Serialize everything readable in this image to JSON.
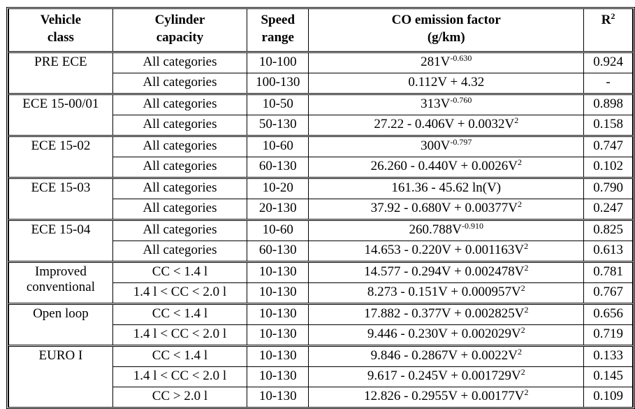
{
  "headers": {
    "vehicle_class": [
      "Vehicle",
      "class"
    ],
    "cylinder_capacity": [
      "Cylinder",
      "capacity"
    ],
    "speed_range": [
      "Speed",
      "range"
    ],
    "emission_factor": [
      "CO emission factor",
      "(g/km)"
    ],
    "r2_base": "R",
    "r2_exp": "2"
  },
  "groups": [
    {
      "class": [
        "PRE ECE"
      ],
      "rows": [
        {
          "cap": "All categories",
          "speed": "10-100",
          "f": [
            "281V",
            "-0.630",
            ""
          ],
          "r2": "0.924"
        },
        {
          "cap": "All categories",
          "speed": "100-130",
          "f": [
            "0.112V + 4.32",
            "",
            ""
          ],
          "r2": "-"
        }
      ]
    },
    {
      "class": [
        "ECE 15-00/01"
      ],
      "rows": [
        {
          "cap": "All categories",
          "speed": "10-50",
          "f": [
            "313V",
            "-0.760",
            ""
          ],
          "r2": "0.898"
        },
        {
          "cap": "All categories",
          "speed": "50-130",
          "f": [
            "27.22 - 0.406V + 0.0032V",
            "2",
            ""
          ],
          "r2": "0.158"
        }
      ]
    },
    {
      "class": [
        "ECE 15-02"
      ],
      "rows": [
        {
          "cap": "All categories",
          "speed": "10-60",
          "f": [
            "300V",
            "-0.797",
            ""
          ],
          "r2": "0.747"
        },
        {
          "cap": "All categories",
          "speed": "60-130",
          "f": [
            "26.260 - 0.440V + 0.0026V",
            "2",
            ""
          ],
          "r2": "0.102"
        }
      ]
    },
    {
      "class": [
        "ECE 15-03"
      ],
      "rows": [
        {
          "cap": "All categories",
          "speed": "10-20",
          "f": [
            "161.36 - 45.62 ln(V)",
            "",
            ""
          ],
          "r2": "0.790"
        },
        {
          "cap": "All categories",
          "speed": "20-130",
          "f": [
            "37.92 - 0.680V + 0.00377V",
            "2",
            ""
          ],
          "r2": "0.247"
        }
      ]
    },
    {
      "class": [
        "ECE 15-04"
      ],
      "rows": [
        {
          "cap": "All categories",
          "speed": "10-60",
          "f": [
            "260.788V",
            "-0.910",
            ""
          ],
          "r2": "0.825"
        },
        {
          "cap": "All categories",
          "speed": "60-130",
          "f": [
            "14.653 - 0.220V + 0.001163V",
            "2",
            ""
          ],
          "r2": "0.613"
        }
      ]
    },
    {
      "class": [
        "Improved",
        "conventional"
      ],
      "rows": [
        {
          "cap": "CC < 1.4 l",
          "speed": "10-130",
          "f": [
            "14.577 - 0.294V + 0.002478V",
            "2",
            ""
          ],
          "r2": "0.781"
        },
        {
          "cap": "1.4 l < CC < 2.0 l",
          "speed": "10-130",
          "f": [
            "8.273 - 0.151V + 0.000957V",
            "2",
            ""
          ],
          "r2": "0.767"
        }
      ]
    },
    {
      "class": [
        "Open loop"
      ],
      "rows": [
        {
          "cap": "CC < 1.4 l",
          "speed": "10-130",
          "f": [
            "17.882 - 0.377V + 0.002825V",
            "2",
            ""
          ],
          "r2": "0.656"
        },
        {
          "cap": "1.4 l < CC < 2.0 l",
          "speed": "10-130",
          "f": [
            "9.446 - 0.230V + 0.002029V",
            "2",
            ""
          ],
          "r2": "0.719"
        }
      ]
    },
    {
      "class": [
        "EURO I"
      ],
      "rows": [
        {
          "cap": "CC < 1.4 l",
          "speed": "10-130",
          "f": [
            "9.846 - 0.2867V + 0.0022V",
            "2",
            ""
          ],
          "r2": "0.133"
        },
        {
          "cap": "1.4 l < CC < 2.0 l",
          "speed": "10-130",
          "f": [
            "9.617 - 0.245V + 0.001729V",
            "2",
            ""
          ],
          "r2": "0.145"
        },
        {
          "cap": "CC > 2.0 l",
          "speed": "10-130",
          "f": [
            "12.826 - 0.2955V + 0.00177V",
            "2",
            ""
          ],
          "r2": "0.109"
        }
      ]
    }
  ]
}
